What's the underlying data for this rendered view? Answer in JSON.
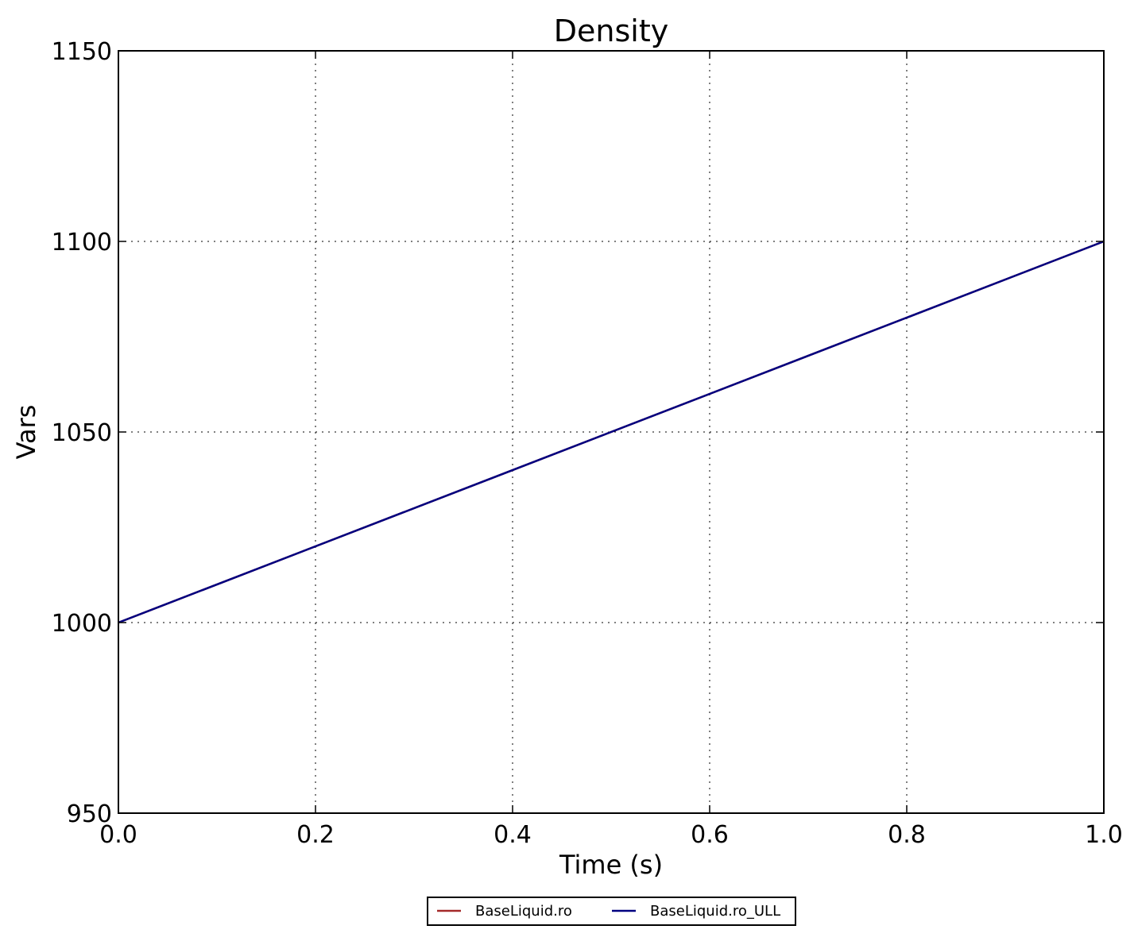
{
  "chart_data": {
    "type": "line",
    "title": "Density",
    "xlabel": "Time (s)",
    "ylabel": "Vars",
    "xlim": [
      0.0,
      1.0
    ],
    "ylim": [
      950,
      1150
    ],
    "x_ticks": [
      "0.0",
      "0.2",
      "0.4",
      "0.6",
      "0.8",
      "1.0"
    ],
    "y_ticks": [
      "950",
      "1000",
      "1050",
      "1100",
      "1150"
    ],
    "grid": true,
    "legend_position": "bottom-center",
    "series": [
      {
        "name": "BaseLiquid.ro",
        "color": "#a52a2a",
        "x": [
          0.0,
          1.0
        ],
        "y": [
          1000,
          1100
        ]
      },
      {
        "name": "BaseLiquid.ro_ULL",
        "color": "#000080",
        "x": [
          0.0,
          1.0
        ],
        "y": [
          1000,
          1100
        ]
      }
    ]
  }
}
